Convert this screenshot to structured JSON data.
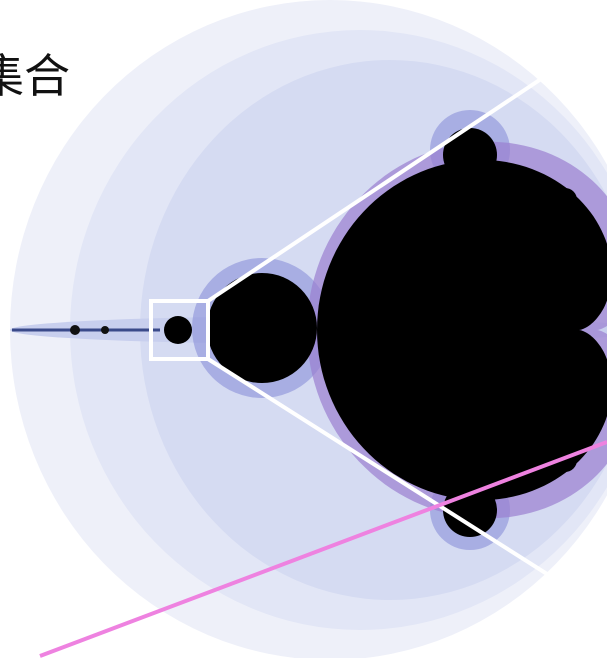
{
  "caption": "集合"
}
